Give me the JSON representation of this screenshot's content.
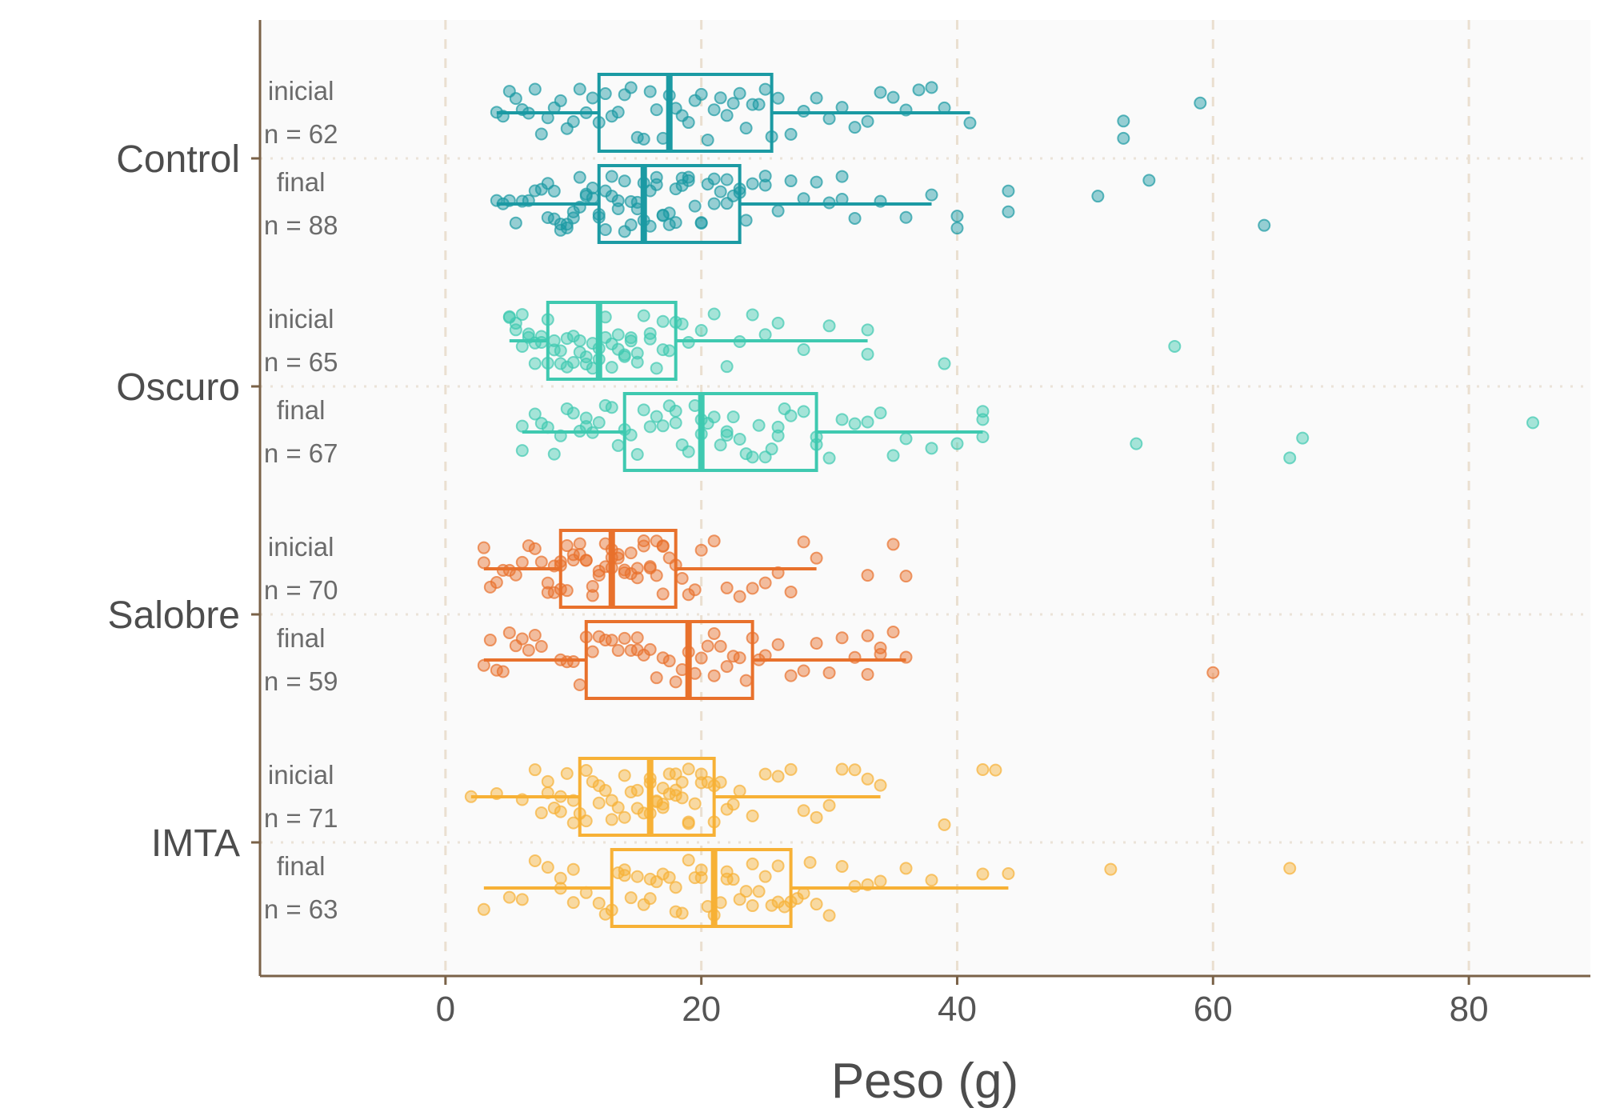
{
  "chart_data": {
    "type": "boxplot",
    "title": "",
    "xlabel": "Peso (g)",
    "ylabel": "",
    "xlim": [
      -14.5,
      89.5
    ],
    "x_ticks": [
      0,
      20,
      40,
      60,
      80
    ],
    "grid": {
      "vertical": "dashed",
      "horizontal": "dotted"
    },
    "legend": "none",
    "categories": [
      "Control",
      "Oscuro",
      "Salobre",
      "IMTA"
    ],
    "colors": {
      "Control": "#1b9aa3",
      "Oscuro": "#3fc9b0",
      "Salobre": "#e8712c",
      "IMTA": "#f7b136"
    },
    "groups": [
      {
        "category": "Control",
        "boxes": [
          {
            "label": "inicial",
            "n_label": "n = 62",
            "whisker_low": 4,
            "q1": 12,
            "median": 17.5,
            "q3": 25.5,
            "whisker_high": 41,
            "points": [
              4,
              4.5,
              5,
              5.5,
              6,
              6.5,
              7,
              7.5,
              8,
              8.5,
              9,
              9.5,
              10,
              10.5,
              11,
              11.5,
              12,
              12.5,
              13,
              13.5,
              14,
              14.5,
              15,
              15.5,
              16,
              16.5,
              17,
              17.5,
              18,
              18.5,
              19,
              19.5,
              20,
              20.5,
              21,
              21.5,
              22,
              22.5,
              23,
              23.5,
              24,
              24.5,
              25,
              25.5,
              26,
              27,
              28,
              29,
              30,
              31,
              32,
              33,
              34,
              35,
              36,
              37,
              38,
              39,
              41,
              53,
              53,
              59
            ]
          },
          {
            "label": "final",
            "n_label": "n = 88",
            "whisker_low": 4,
            "q1": 12,
            "median": 15.5,
            "q3": 23,
            "whisker_high": 38,
            "points": [
              4,
              4.5,
              5,
              5.5,
              6,
              6.5,
              7,
              7.5,
              8,
              8,
              8.5,
              8.5,
              9,
              9,
              9.5,
              9.5,
              10,
              10,
              10.5,
              10.5,
              11,
              11,
              11.5,
              11.5,
              12,
              12,
              12.5,
              12.5,
              13,
              13,
              13.5,
              13.5,
              14,
              14,
              14.5,
              14.5,
              15,
              15,
              15.5,
              15.5,
              16,
              16,
              16.5,
              16.5,
              17,
              17,
              17.5,
              17.5,
              18,
              18,
              18.5,
              18.5,
              19,
              19,
              19.5,
              20,
              20,
              20.5,
              21,
              21,
              21.5,
              22,
              22,
              22.5,
              23,
              23,
              23.5,
              24,
              25,
              25,
              26,
              27,
              28,
              29,
              30,
              31,
              31,
              32,
              34,
              36,
              38,
              40,
              40,
              44,
              44,
              51,
              55,
              64
            ]
          }
        ]
      },
      {
        "category": "Oscuro",
        "boxes": [
          {
            "label": "inicial",
            "n_label": "n = 65",
            "whisker_low": 5,
            "q1": 8,
            "median": 12,
            "q3": 18,
            "whisker_high": 33,
            "points": [
              5,
              5,
              5.5,
              5.5,
              6,
              6,
              6.5,
              6.5,
              7,
              7,
              7.5,
              7.5,
              8,
              8,
              8.5,
              8.5,
              9,
              9,
              9.5,
              9.5,
              10,
              10,
              10.5,
              10.5,
              11,
              11,
              11.5,
              11.5,
              12,
              12,
              12.5,
              12.5,
              13,
              13,
              13.5,
              13.5,
              14,
              14,
              14.5,
              14.5,
              15,
              15,
              15.5,
              16,
              16,
              16.5,
              17,
              17,
              17.5,
              18,
              18.5,
              19,
              20,
              21,
              22,
              23,
              24,
              25,
              26,
              28,
              30,
              33,
              33,
              39,
              57
            ]
          },
          {
            "label": "final",
            "n_label": "n = 67",
            "whisker_low": 6,
            "q1": 14,
            "median": 20,
            "q3": 29,
            "whisker_high": 42,
            "points": [
              6,
              6,
              7,
              7.5,
              8,
              8.5,
              9,
              9.5,
              10,
              10.5,
              11,
              11,
              11.5,
              12,
              12.5,
              13,
              13.5,
              14,
              14.5,
              15,
              15.5,
              16,
              16.5,
              17,
              17.5,
              18,
              18.5,
              19,
              19.5,
              20,
              20,
              20.5,
              21,
              21.5,
              22,
              22.5,
              23,
              23.5,
              24,
              24.5,
              25,
              25.5,
              26,
              26.5,
              27,
              28,
              29,
              29,
              30,
              31,
              32,
              33,
              34,
              35,
              36,
              38,
              40,
              42,
              42,
              42,
              54,
              66,
              67,
              85,
              18,
              22,
              26
            ]
          }
        ]
      },
      {
        "category": "Salobre",
        "boxes": [
          {
            "label": "inicial",
            "n_label": "n = 70",
            "whisker_low": 3,
            "q1": 9,
            "median": 13,
            "q3": 18,
            "whisker_high": 29,
            "points": [
              3,
              3,
              3.5,
              4,
              4.5,
              5,
              5.5,
              6,
              6.5,
              7,
              7.5,
              8,
              8,
              8.5,
              8.5,
              9,
              9,
              9.5,
              9.5,
              10,
              10,
              10.5,
              10.5,
              11,
              11,
              11.5,
              11.5,
              12,
              12,
              12.5,
              12.5,
              13,
              13,
              13.5,
              13.5,
              14,
              14,
              14.5,
              14.5,
              15,
              15,
              15.5,
              15.5,
              16,
              16,
              16.5,
              16.5,
              17,
              17,
              17.5,
              18,
              18.5,
              19,
              19.5,
              20,
              21,
              22,
              23,
              24,
              25,
              26,
              27,
              28,
              29,
              33,
              35,
              36,
              9,
              13,
              17
            ]
          },
          {
            "label": "final",
            "n_label": "n = 59",
            "whisker_low": 3,
            "q1": 11,
            "median": 19,
            "q3": 24,
            "whisker_high": 36,
            "points": [
              3,
              3.5,
              4,
              4.5,
              5,
              5.5,
              6,
              6.5,
              7,
              7.5,
              9,
              9.5,
              10,
              10.5,
              11,
              11.5,
              12,
              12.5,
              13,
              13.5,
              14,
              14.5,
              15,
              15.5,
              16,
              16.5,
              17,
              17.5,
              18,
              18.5,
              19,
              19.5,
              20,
              20.5,
              21,
              21.5,
              22,
              22.5,
              23,
              23.5,
              24,
              24.5,
              25,
              26,
              27,
              28,
              29,
              30,
              31,
              32,
              33,
              33,
              34,
              34,
              35,
              36,
              60,
              15,
              21
            ]
          }
        ]
      },
      {
        "category": "IMTA",
        "boxes": [
          {
            "label": "inicial",
            "n_label": "n = 71",
            "whisker_low": 2,
            "q1": 10.5,
            "median": 16,
            "q3": 21,
            "whisker_high": 34,
            "points": [
              2,
              4,
              6,
              7,
              7.5,
              8,
              8.5,
              9,
              9.5,
              10,
              10.5,
              11,
              11.5,
              12,
              12.5,
              13,
              13.5,
              14,
              14.5,
              15,
              15.5,
              16,
              16,
              16.5,
              16.5,
              17,
              17,
              17.5,
              17.5,
              18,
              18,
              18.5,
              18.5,
              19,
              19,
              19.5,
              20,
              20.5,
              21,
              21.5,
              22,
              22.5,
              23,
              24,
              25,
              26,
              27,
              28,
              29,
              30,
              31,
              32,
              33,
              34,
              39,
              42,
              43,
              8,
              10,
              12,
              14,
              16,
              18,
              20,
              9,
              11,
              13,
              15,
              17,
              19,
              21
            ]
          },
          {
            "label": "final",
            "n_label": "n = 63",
            "whisker_low": 3,
            "q1": 13,
            "median": 21,
            "q3": 27,
            "whisker_high": 44,
            "points": [
              3,
              5,
              6,
              7,
              8,
              9,
              9,
              10,
              11,
              12,
              12.5,
              13,
              13.5,
              14,
              14.5,
              15,
              15.5,
              16,
              16.5,
              17,
              17.5,
              18,
              18.5,
              19,
              19.5,
              20,
              20.5,
              21,
              21.5,
              22,
              22.5,
              23,
              23.5,
              24,
              24.5,
              25,
              25.5,
              26,
              26.5,
              27,
              27.5,
              28,
              28.5,
              29,
              30,
              31,
              32,
              33,
              34,
              36,
              38,
              42,
              44,
              52,
              66,
              10,
              14,
              18,
              22,
              26,
              16,
              20,
              24
            ]
          }
        ]
      }
    ]
  }
}
